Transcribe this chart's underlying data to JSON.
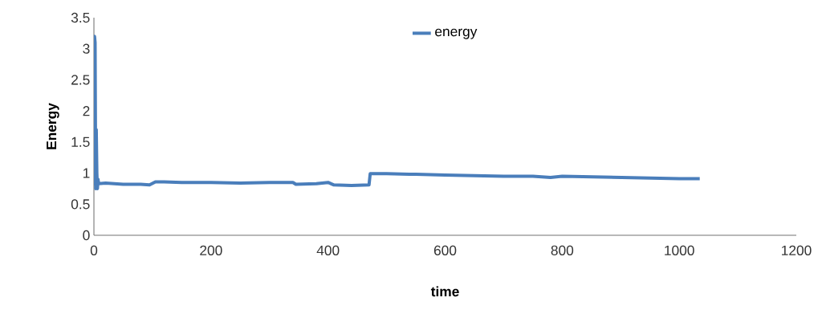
{
  "chart_data": {
    "type": "line",
    "xlabel": "time",
    "ylabel": "Energy",
    "xlim": [
      0,
      1200
    ],
    "ylim": [
      0,
      3.5
    ],
    "xticks": [
      0,
      200,
      400,
      600,
      800,
      1000,
      1200
    ],
    "yticks": [
      0,
      0.5,
      1,
      1.5,
      2,
      2.5,
      3,
      3.5
    ],
    "grid": false,
    "legend": "top",
    "marker": "none",
    "line_style": "solid",
    "series": [
      {
        "name": "energy",
        "color": "#4a7ebb",
        "x": [
          0,
          1,
          2,
          3,
          4,
          5,
          6,
          7,
          8,
          20,
          50,
          80,
          95,
          105,
          120,
          150,
          200,
          250,
          300,
          340,
          345,
          380,
          400,
          410,
          440,
          470,
          472,
          500,
          550,
          600,
          650,
          700,
          750,
          780,
          800,
          850,
          900,
          950,
          1000,
          1035
        ],
        "values": [
          0.8,
          3.2,
          3.1,
          0.75,
          1.7,
          1.0,
          0.75,
          0.9,
          0.83,
          0.84,
          0.82,
          0.82,
          0.81,
          0.86,
          0.86,
          0.85,
          0.85,
          0.84,
          0.85,
          0.85,
          0.82,
          0.83,
          0.85,
          0.81,
          0.8,
          0.81,
          0.99,
          0.99,
          0.98,
          0.97,
          0.96,
          0.95,
          0.95,
          0.93,
          0.95,
          0.94,
          0.93,
          0.92,
          0.91,
          0.91
        ]
      }
    ]
  }
}
